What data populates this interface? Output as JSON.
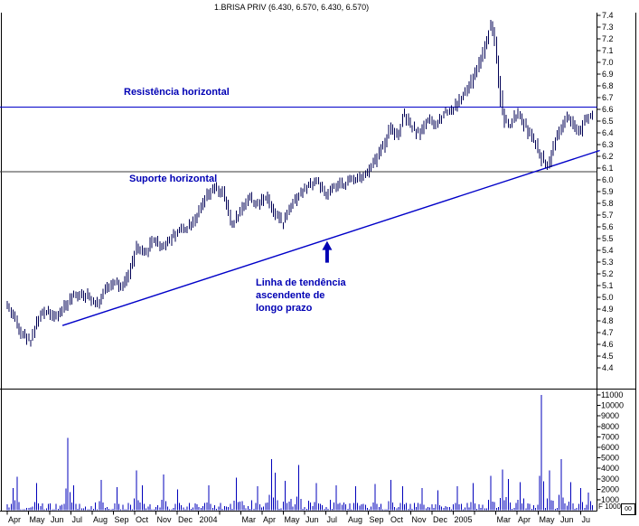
{
  "title": "1.BRISA PRIV (6.430, 6.570, 6.430, 6.570)",
  "annotations": {
    "resistance": "Resistência horizontal",
    "support": "Suporte horizontal",
    "trend": "Linha de tendência\nascendente de\nlongo prazo"
  },
  "volume_scale": {
    "note": "F 1000",
    "corner": "00"
  },
  "chart_data": {
    "type": "bar",
    "instrument": "1.BRISA PRIV",
    "last_quote": {
      "open": 6.43,
      "high": 6.57,
      "low": 6.43,
      "close": 6.57
    },
    "price_axis": {
      "min": 4.4,
      "max": 7.4,
      "step": 0.1
    },
    "volume_axis": {
      "min": 1000,
      "max": 11000,
      "step": 1000,
      "multiplier": 1000
    },
    "x_axis": {
      "start_label": "Apr",
      "months": [
        {
          "m": 0,
          "label": "Apr"
        },
        {
          "m": 1,
          "label": "May"
        },
        {
          "m": 2,
          "label": "Jun"
        },
        {
          "m": 3,
          "label": "Jul"
        },
        {
          "m": 4,
          "label": "Aug"
        },
        {
          "m": 5,
          "label": "Sep"
        },
        {
          "m": 6,
          "label": "Oct"
        },
        {
          "m": 7,
          "label": "Nov"
        },
        {
          "m": 8,
          "label": "Dec"
        },
        {
          "m": 9,
          "label": "2004"
        },
        {
          "m": 11,
          "label": "Mar"
        },
        {
          "m": 12,
          "label": "Apr"
        },
        {
          "m": 13,
          "label": "May"
        },
        {
          "m": 14,
          "label": "Jun"
        },
        {
          "m": 15,
          "label": "Jul"
        },
        {
          "m": 16,
          "label": "Aug"
        },
        {
          "m": 17,
          "label": "Sep"
        },
        {
          "m": 18,
          "label": "Oct"
        },
        {
          "m": 19,
          "label": "Nov"
        },
        {
          "m": 20,
          "label": "Dec"
        },
        {
          "m": 21,
          "label": "2005"
        },
        {
          "m": 23,
          "label": "Mar"
        },
        {
          "m": 24,
          "label": "Apr"
        },
        {
          "m": 25,
          "label": "May"
        },
        {
          "m": 26,
          "label": "Jun"
        },
        {
          "m": 27,
          "label": "Ju"
        }
      ]
    },
    "levels": {
      "resistance": 6.62,
      "support": 6.07
    },
    "trendline": {
      "from": [
        2.6,
        4.76
      ],
      "to": [
        27.9,
        6.25
      ]
    },
    "arrow": {
      "t": 15.06,
      "price": 5.48
    },
    "span_months": 27.55,
    "price_anchors": [
      [
        0.0,
        4.93
      ],
      [
        0.3,
        4.85
      ],
      [
        0.7,
        4.7
      ],
      [
        1.1,
        4.63
      ],
      [
        1.5,
        4.82
      ],
      [
        1.9,
        4.9
      ],
      [
        2.3,
        4.82
      ],
      [
        2.7,
        4.92
      ],
      [
        3.1,
        5.0
      ],
      [
        3.5,
        5.04
      ],
      [
        3.9,
        5.0
      ],
      [
        4.3,
        4.95
      ],
      [
        4.7,
        5.08
      ],
      [
        5.1,
        5.15
      ],
      [
        5.4,
        5.06
      ],
      [
        5.8,
        5.22
      ],
      [
        6.1,
        5.42
      ],
      [
        6.5,
        5.36
      ],
      [
        6.9,
        5.5
      ],
      [
        7.3,
        5.43
      ],
      [
        7.7,
        5.5
      ],
      [
        8.1,
        5.57
      ],
      [
        8.5,
        5.6
      ],
      [
        9.0,
        5.7
      ],
      [
        9.4,
        5.85
      ],
      [
        9.8,
        5.93
      ],
      [
        10.2,
        5.88
      ],
      [
        10.6,
        5.62
      ],
      [
        11.0,
        5.73
      ],
      [
        11.4,
        5.86
      ],
      [
        11.8,
        5.78
      ],
      [
        12.2,
        5.87
      ],
      [
        12.6,
        5.73
      ],
      [
        13.0,
        5.63
      ],
      [
        13.4,
        5.8
      ],
      [
        13.8,
        5.88
      ],
      [
        14.2,
        5.95
      ],
      [
        14.6,
        6.0
      ],
      [
        15.0,
        5.86
      ],
      [
        15.4,
        5.93
      ],
      [
        15.8,
        5.96
      ],
      [
        16.2,
        6.0
      ],
      [
        16.6,
        6.03
      ],
      [
        17.0,
        6.06
      ],
      [
        17.4,
        6.18
      ],
      [
        17.8,
        6.32
      ],
      [
        18.1,
        6.46
      ],
      [
        18.4,
        6.36
      ],
      [
        18.7,
        6.55
      ],
      [
        19.0,
        6.46
      ],
      [
        19.4,
        6.39
      ],
      [
        19.8,
        6.51
      ],
      [
        20.2,
        6.46
      ],
      [
        20.6,
        6.58
      ],
      [
        21.0,
        6.6
      ],
      [
        21.4,
        6.69
      ],
      [
        21.8,
        6.8
      ],
      [
        22.2,
        6.97
      ],
      [
        22.5,
        7.12
      ],
      [
        22.8,
        7.33
      ],
      [
        23.0,
        7.18
      ],
      [
        23.2,
        6.8
      ],
      [
        23.4,
        6.52
      ],
      [
        23.7,
        6.46
      ],
      [
        24.0,
        6.56
      ],
      [
        24.3,
        6.5
      ],
      [
        24.6,
        6.4
      ],
      [
        24.9,
        6.3
      ],
      [
        25.2,
        6.18
      ],
      [
        25.5,
        6.13
      ],
      [
        25.8,
        6.32
      ],
      [
        26.1,
        6.44
      ],
      [
        26.4,
        6.53
      ],
      [
        26.7,
        6.44
      ],
      [
        27.0,
        6.41
      ],
      [
        27.2,
        6.52
      ],
      [
        27.55,
        6.57
      ]
    ],
    "volume_spikes": [
      [
        0.3,
        2100
      ],
      [
        0.5,
        3200
      ],
      [
        1.35,
        2600
      ],
      [
        2.85,
        6900
      ],
      [
        3.1,
        2400
      ],
      [
        4.4,
        2900
      ],
      [
        5.2,
        2200
      ],
      [
        6.05,
        3800
      ],
      [
        6.35,
        2400
      ],
      [
        7.4,
        3400
      ],
      [
        8.05,
        2000
      ],
      [
        9.5,
        2400
      ],
      [
        10.8,
        3100
      ],
      [
        11.8,
        2300
      ],
      [
        12.4,
        4900
      ],
      [
        12.6,
        3600
      ],
      [
        13.05,
        2800
      ],
      [
        13.7,
        4300
      ],
      [
        14.6,
        2600
      ],
      [
        15.5,
        2400
      ],
      [
        16.4,
        2300
      ],
      [
        17.3,
        2500
      ],
      [
        18.05,
        2900
      ],
      [
        18.6,
        2300
      ],
      [
        19.5,
        2100
      ],
      [
        20.3,
        1900
      ],
      [
        21.2,
        2300
      ],
      [
        21.9,
        2600
      ],
      [
        22.8,
        3300
      ],
      [
        23.3,
        3900
      ],
      [
        23.6,
        3000
      ],
      [
        24.1,
        2700
      ],
      [
        25.2,
        11000
      ],
      [
        25.55,
        3800
      ],
      [
        26.05,
        4900
      ],
      [
        26.5,
        2700
      ],
      [
        27.0,
        2100
      ],
      [
        27.4,
        1700
      ]
    ],
    "colors": {
      "price": "#000055",
      "volume": "#0000bb",
      "trend": "#0000c8",
      "resistance": "#0000c8",
      "support": "#3a3a3a",
      "annotation": "#0000b4",
      "axis": "#000000"
    }
  }
}
